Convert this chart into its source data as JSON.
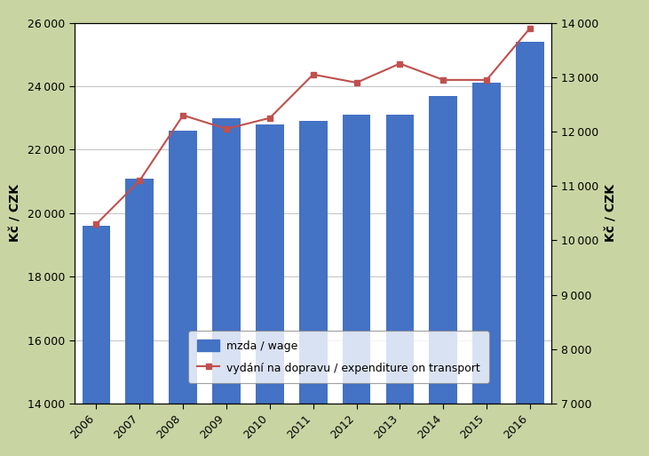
{
  "years": [
    2006,
    2007,
    2008,
    2009,
    2010,
    2011,
    2012,
    2013,
    2014,
    2015,
    2016
  ],
  "wage": [
    19600,
    21100,
    22600,
    23000,
    22800,
    22900,
    23100,
    23100,
    23700,
    24100,
    25400
  ],
  "transport": [
    10300,
    11100,
    12300,
    12050,
    12250,
    13050,
    12900,
    13250,
    12950,
    12950,
    13900
  ],
  "bar_color": "#4472C4",
  "line_color": "#C0504D",
  "bg_outer": "#C8D5A3",
  "bg_inner": "#FFFFFF",
  "ylabel_left": "Kč / CZK",
  "ylabel_right": "Kč / CZK",
  "ylim_left": [
    14000,
    26000
  ],
  "ylim_right": [
    7000,
    14000
  ],
  "yticks_left": [
    14000,
    16000,
    18000,
    20000,
    22000,
    24000,
    26000
  ],
  "yticks_right": [
    7000,
    8000,
    9000,
    10000,
    11000,
    12000,
    13000,
    14000
  ],
  "legend_wage": "mzda / wage",
  "legend_transport": "vydání na dopravu / expenditure on transport"
}
